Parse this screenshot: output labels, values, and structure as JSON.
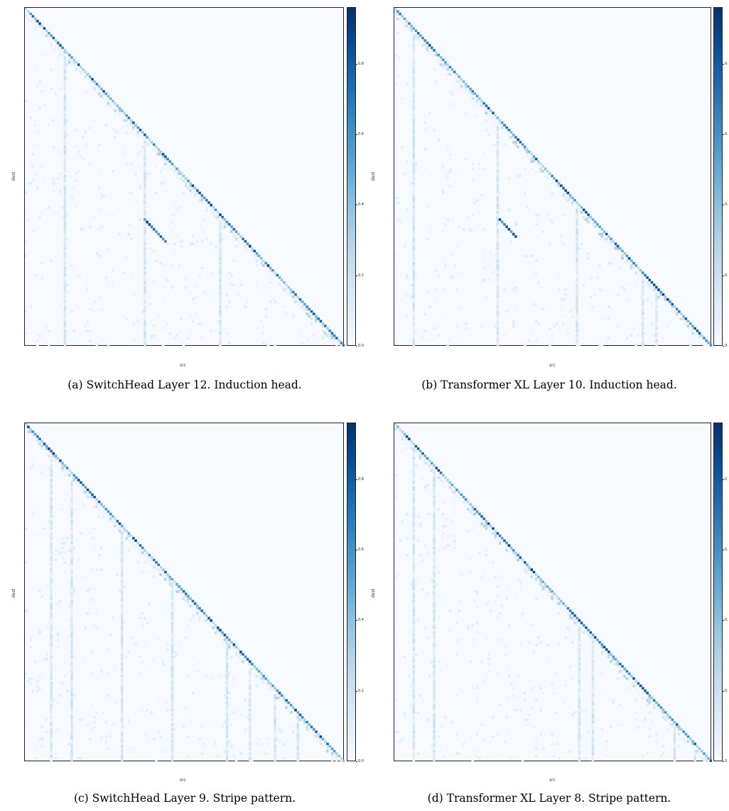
{
  "colorbar": {
    "ticks_full": [
      "0.0",
      "0.2",
      "0.4",
      "0.6",
      "0.8"
    ],
    "ticks_clipped": [
      "0.",
      "0.",
      "0.",
      "0.",
      "0."
    ],
    "vmin": 0.0,
    "vmax": 0.96,
    "colormap": "Blues"
  },
  "chart_data": [
    {
      "type": "heatmap",
      "caption": "(a) SwitchHead Layer 12. Induction head.",
      "xlabel": "src",
      "ylabel": "dest",
      "pattern": "induction",
      "n_tokens": 140,
      "matrix": "lower-triangular attention weights (dest x src), range 0–0.96",
      "features": {
        "diagonal_offset": 0.0,
        "off_diagonal_line": {
          "src_start": 0.37,
          "dest_start": 0.62,
          "length": 0.07
        },
        "vertical_stripes": [
          0.12,
          0.37,
          0.61
        ]
      }
    },
    {
      "type": "heatmap",
      "caption": "(b) Transformer XL Layer 10. Induction head.",
      "xlabel": "src",
      "ylabel": "dest",
      "pattern": "induction",
      "n_tokens": 140,
      "matrix": "lower-triangular attention weights (dest x src), range 0–0.96",
      "features": {
        "diagonal_offset": 0.0,
        "off_diagonal_line": {
          "src_start": 0.33,
          "dest_start": 0.62,
          "length": 0.06
        },
        "vertical_stripes": [
          0.06,
          0.32,
          0.57,
          0.78,
          0.82
        ]
      }
    },
    {
      "type": "heatmap",
      "caption": "(c) SwitchHead Layer 9. Stripe pattern.",
      "xlabel": "src",
      "ylabel": "dest",
      "pattern": "stripe",
      "n_tokens": 140,
      "matrix": "lower-triangular attention weights (dest x src), range 0–0.96",
      "features": {
        "vertical_stripes": [
          0.08,
          0.14,
          0.3,
          0.46,
          0.63,
          0.7,
          0.78,
          0.85
        ]
      }
    },
    {
      "type": "heatmap",
      "caption": "(d) Transformer XL Layer 8. Stripe pattern.",
      "xlabel": "src",
      "ylabel": "dest",
      "pattern": "stripe",
      "n_tokens": 140,
      "matrix": "lower-triangular attention weights (dest x src), range 0–0.96",
      "features": {
        "vertical_stripes": [
          0.06,
          0.12,
          0.58,
          0.62,
          0.88,
          0.94
        ]
      }
    }
  ]
}
